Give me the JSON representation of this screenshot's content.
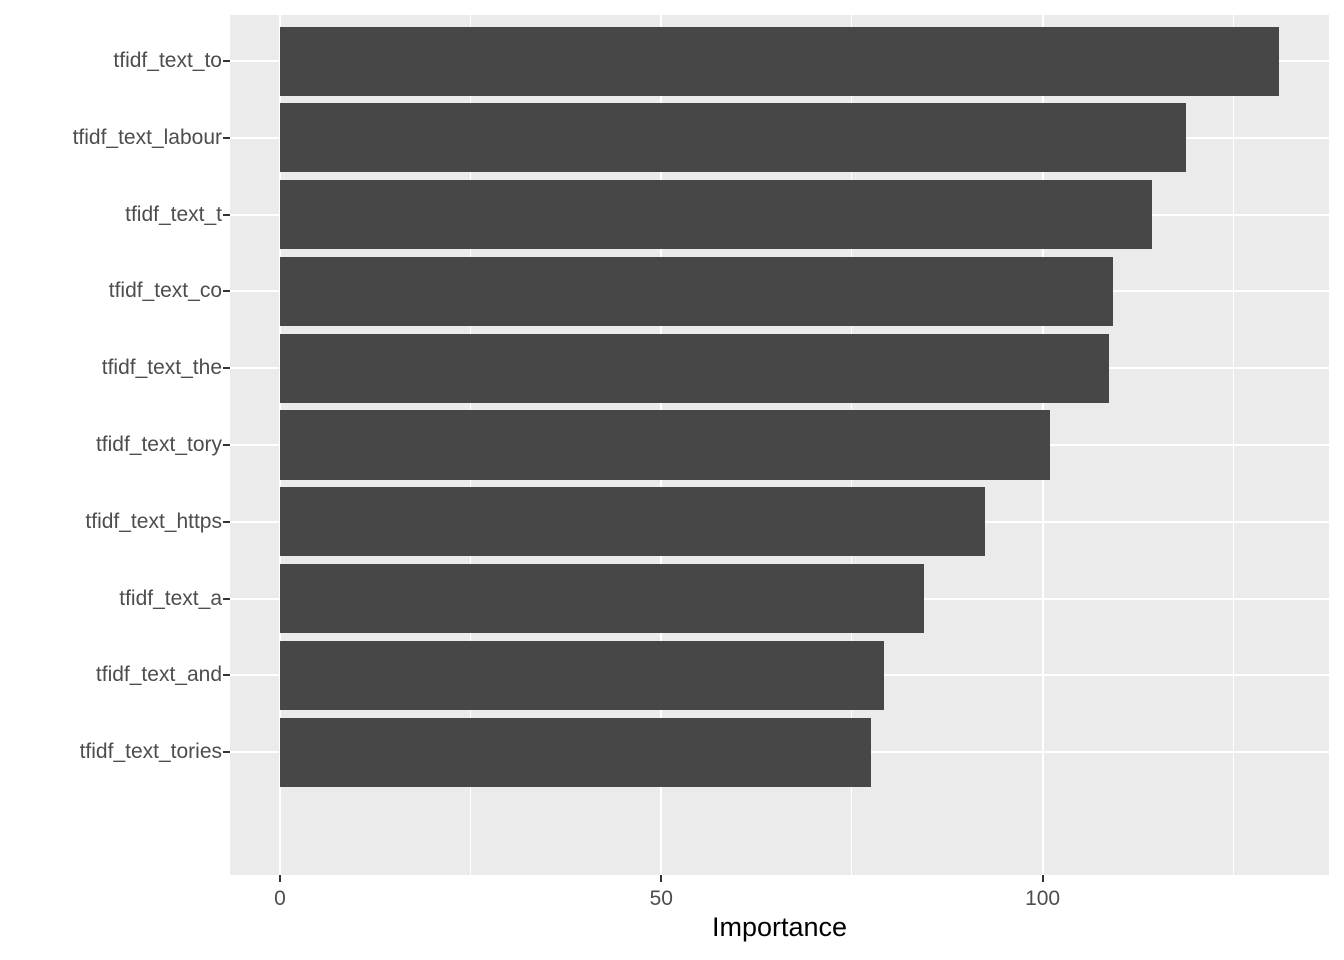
{
  "chart_data": {
    "type": "bar",
    "orientation": "horizontal",
    "title": "",
    "xlabel": "Importance",
    "ylabel": "",
    "categories": [
      "tfidf_text_to",
      "tfidf_text_labour",
      "tfidf_text_t",
      "tfidf_text_co",
      "tfidf_text_the",
      "tfidf_text_tory",
      "tfidf_text_https",
      "tfidf_text_a",
      "tfidf_text_and",
      "tfidf_text_tories"
    ],
    "values": [
      131,
      118.8,
      114.4,
      109.2,
      108.7,
      101,
      92.4,
      84.4,
      79.2,
      77.5
    ],
    "x_ticks": [
      0,
      50,
      100
    ],
    "x_tick_labels": [
      "0",
      "50",
      "100"
    ],
    "x_minor_ticks": [
      25,
      75,
      125
    ],
    "xlim": [
      -6.55,
      137.55
    ],
    "grid": "on",
    "legend": "none",
    "bar_width_fraction": 0.9,
    "colors": {
      "bar": "#474747",
      "panel_bg": "#EBEBEB",
      "grid": "#FFFFFF",
      "tick_label": "#4D4D4D",
      "tick_mark": "#333333",
      "axis_title": "#000000",
      "page_bg": "#FFFFFF"
    }
  }
}
